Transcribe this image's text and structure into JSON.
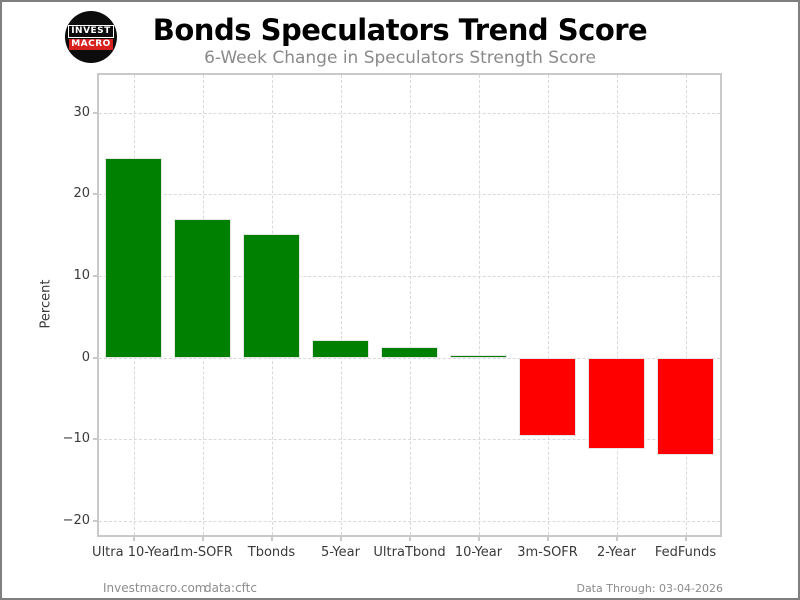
{
  "header": {
    "title": "Bonds Speculators Trend Score",
    "subtitle": "6-Week Change in Speculators Strength Score",
    "logo": {
      "line1": "INVEST",
      "line2": "MACRO"
    }
  },
  "chart_data": {
    "type": "bar",
    "categories": [
      "Ultra 10-Year",
      "1m-SOFR",
      "Tbonds",
      "5-Year",
      "UltraTbond",
      "10-Year",
      "3m-SOFR",
      "2-Year",
      "FedFunds"
    ],
    "values": [
      24.5,
      17.0,
      15.2,
      2.2,
      1.3,
      0.3,
      -9.6,
      -11.2,
      -11.9
    ],
    "title": "Bonds Speculators Trend Score",
    "subtitle": "6-Week Change in Speculators Strength Score",
    "xlabel": "",
    "ylabel": "Percent",
    "yticks": [
      30,
      20,
      10,
      0,
      -10,
      -20
    ],
    "ytick_labels": [
      "30",
      "20",
      "10",
      "0",
      "−10",
      "−20"
    ],
    "ylim": [
      -21.7,
      34.6
    ],
    "grid": "dashed",
    "legend": "none",
    "colors": {
      "positive": "#008000",
      "negative": "#ff0000",
      "bar_edge": "#e6e6e6",
      "grid": "#d9d9d9"
    }
  },
  "footer": {
    "site": "Investmacro.com",
    "source": "data:cftc",
    "data_through": "Data Through: 03-04-2026"
  }
}
